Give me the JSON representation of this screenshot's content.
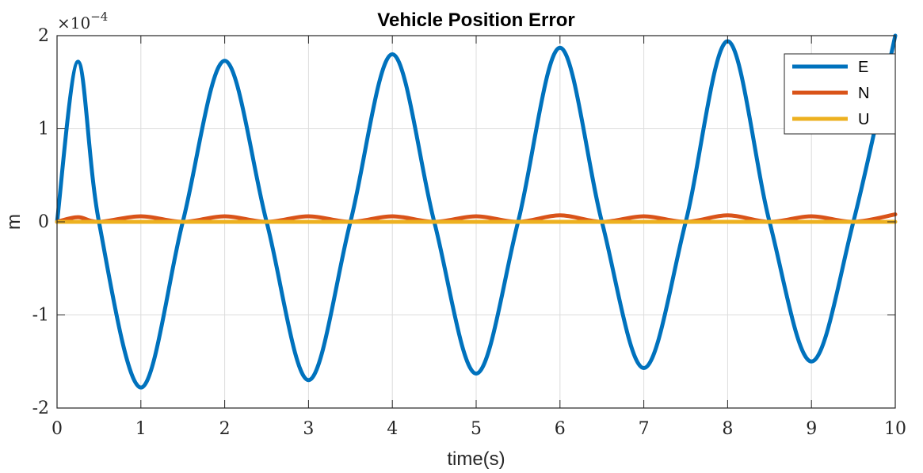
{
  "chart_data": {
    "type": "line",
    "title": "Vehicle Position Error",
    "xlabel": "time(s)",
    "ylabel": "m",
    "y_multiplier": "×10",
    "y_exponent": "−4",
    "xlim": [
      0,
      10
    ],
    "ylim": [
      -2,
      2
    ],
    "x_ticks": [
      0,
      1,
      2,
      3,
      4,
      5,
      6,
      7,
      8,
      9,
      10
    ],
    "y_ticks": [
      -2,
      -1,
      0,
      1,
      2
    ],
    "y_tick_labels": [
      "-2",
      "-1",
      "0",
      "1",
      "2"
    ],
    "grid": true,
    "legend_position": "top-right",
    "x": [
      0,
      0.25,
      0.5,
      1.0,
      1.5,
      2.0,
      2.5,
      3.0,
      3.5,
      4.0,
      4.5,
      5.0,
      5.5,
      6.0,
      6.5,
      7.0,
      7.5,
      8.0,
      8.5,
      9.0,
      9.5,
      10.0
    ],
    "series": [
      {
        "name": "E",
        "color": "#0072BD",
        "values": [
          0,
          1.72,
          0,
          -1.78,
          0,
          1.73,
          0,
          -1.7,
          0,
          1.8,
          0,
          -1.63,
          0,
          1.87,
          0,
          -1.57,
          0,
          1.94,
          0,
          -1.5,
          0,
          2.0
        ]
      },
      {
        "name": "N",
        "color": "#D95319",
        "values": [
          0,
          0.05,
          0,
          0.06,
          0,
          0.06,
          0,
          0.06,
          0,
          0.06,
          0,
          0.06,
          0,
          0.07,
          0,
          0.06,
          0,
          0.07,
          0,
          0.06,
          0,
          0.08
        ]
      },
      {
        "name": "U",
        "color": "#EDB120",
        "values": [
          0,
          0,
          0,
          0,
          0,
          0,
          0,
          0,
          0,
          0,
          0,
          0,
          0,
          0,
          0,
          0,
          0,
          0,
          0,
          0,
          0,
          0
        ]
      }
    ]
  }
}
